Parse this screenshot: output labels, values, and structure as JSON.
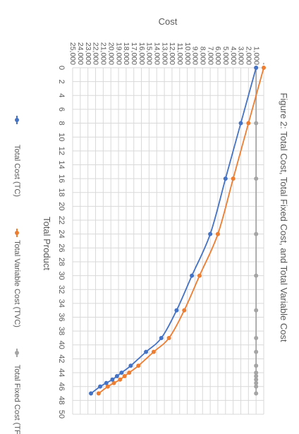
{
  "chart_data": {
    "type": "line",
    "title": "Figure 2: Total Cost, Total Fixed Cost, and Total Variable Cost",
    "xlabel": "Total Product",
    "ylabel": "Cost",
    "xlim": [
      0,
      50
    ],
    "ylim": [
      0,
      25000
    ],
    "x_ticks": [
      0,
      2,
      4,
      6,
      8,
      10,
      12,
      14,
      16,
      18,
      20,
      22,
      24,
      26,
      28,
      30,
      32,
      34,
      36,
      38,
      40,
      42,
      44,
      46,
      48,
      50
    ],
    "y_ticks": [
      {
        "v": 0,
        "label": "-"
      },
      {
        "v": 1000,
        "label": "1,000"
      },
      {
        "v": 2000,
        "label": "2,000"
      },
      {
        "v": 3000,
        "label": "3,000"
      },
      {
        "v": 4000,
        "label": "4,000"
      },
      {
        "v": 5000,
        "label": "5,000"
      },
      {
        "v": 6000,
        "label": "6,000"
      },
      {
        "v": 7000,
        "label": "7,000"
      },
      {
        "v": 8000,
        "label": "8,000"
      },
      {
        "v": 9000,
        "label": "9,000"
      },
      {
        "v": 10000,
        "label": "10,000"
      },
      {
        "v": 11000,
        "label": "11,000"
      },
      {
        "v": 12000,
        "label": "12,000"
      },
      {
        "v": 13000,
        "label": "13,000"
      },
      {
        "v": 14000,
        "label": "14,000"
      },
      {
        "v": 15000,
        "label": "15,000"
      },
      {
        "v": 16000,
        "label": "16,000"
      },
      {
        "v": 17000,
        "label": "17,000"
      },
      {
        "v": 18000,
        "label": "18,000"
      },
      {
        "v": 19000,
        "label": "19,000"
      },
      {
        "v": 20000,
        "label": "20,000"
      },
      {
        "v": 21000,
        "label": "21,000"
      },
      {
        "v": 22000,
        "label": "22,000"
      },
      {
        "v": 23000,
        "label": "23,000"
      },
      {
        "v": 24000,
        "label": "24,000"
      },
      {
        "v": 25000,
        "label": "25,000"
      }
    ],
    "grid": true,
    "legend_position": "bottom",
    "orientation": "rotated-90",
    "series": [
      {
        "name": "Total Cost (TC)",
        "color": "#4472C4",
        "x": [
          0,
          8,
          16,
          24,
          30,
          35,
          39,
          41,
          43,
          44,
          44.5,
          45,
          45.5,
          46,
          47
        ],
        "y": [
          1000,
          3000,
          5000,
          7000,
          9400,
          11400,
          13400,
          15400,
          17400,
          18600,
          19200,
          19800,
          20600,
          21400,
          22600
        ]
      },
      {
        "name": "Total Variable Cost (TVC)",
        "color": "#ED7D31",
        "x": [
          0,
          8,
          16,
          24,
          30,
          35,
          39,
          41,
          43,
          44,
          44.5,
          45,
          45.5,
          46,
          47
        ],
        "y": [
          0,
          2000,
          4000,
          6000,
          8400,
          10400,
          12400,
          14400,
          16400,
          17600,
          18200,
          18800,
          19600,
          20400,
          21600
        ]
      },
      {
        "name": "Total Fixed Cost (TFC)",
        "color": "#A5A5A5",
        "x": [
          0,
          8,
          16,
          24,
          30,
          35,
          39,
          41,
          43,
          44,
          44.5,
          45,
          45.5,
          46,
          47
        ],
        "y": [
          1000,
          1000,
          1000,
          1000,
          1000,
          1000,
          1000,
          1000,
          1000,
          1000,
          1000,
          1000,
          1000,
          1000,
          1000
        ]
      }
    ]
  }
}
